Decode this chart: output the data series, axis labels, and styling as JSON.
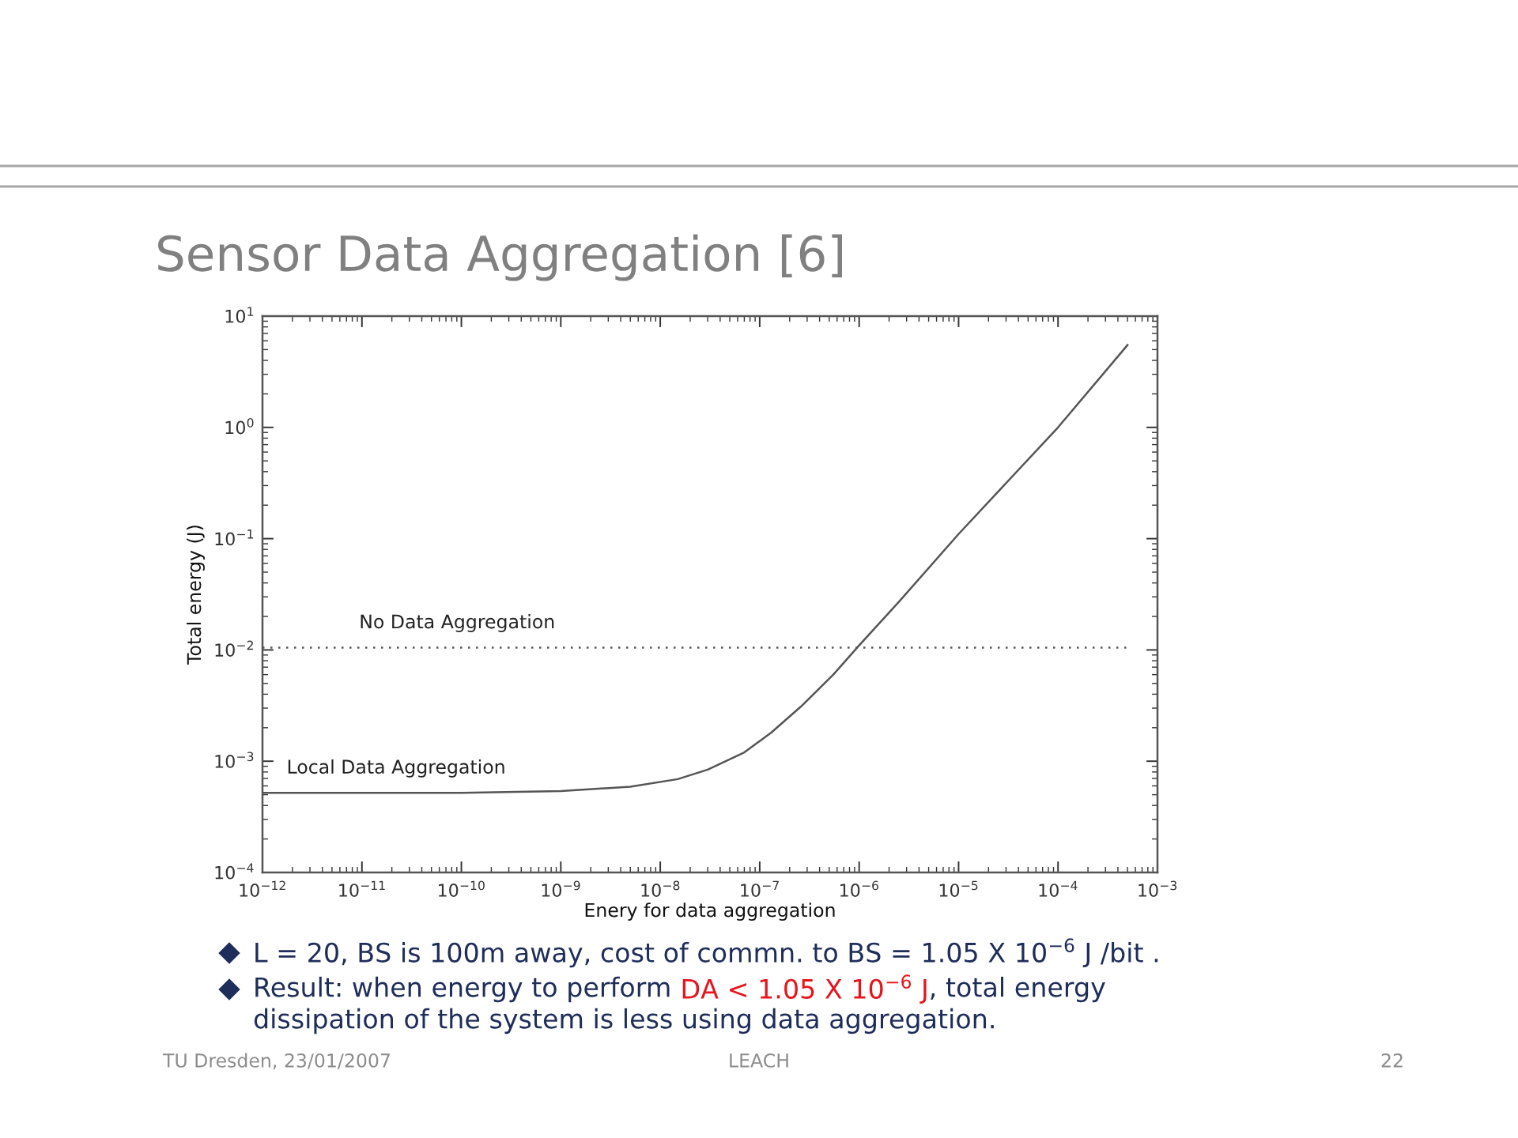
{
  "chart_data": {
    "type": "line",
    "title": "Sensor Data Aggregation [6]",
    "xlabel": "Enery for data aggregation",
    "ylabel": "Total energy (J)",
    "log": "xy",
    "xlim": [
      1e-12,
      0.001
    ],
    "ylim": [
      0.0001,
      10
    ],
    "xticks": [
      {
        "value": 1e-12,
        "label": "10$^{−12}$"
      },
      {
        "value": 1e-11,
        "label": "10$^{−11}$"
      },
      {
        "value": 1e-10,
        "label": "10$^{−10}$"
      },
      {
        "value": 1e-09,
        "label": "10$^{−9}$"
      },
      {
        "value": 1e-08,
        "label": "10$^{−8}$"
      },
      {
        "value": 1e-07,
        "label": "10$^{−7}$"
      },
      {
        "value": 1e-06,
        "label": "10$^{−6}$"
      },
      {
        "value": 1e-05,
        "label": "10$^{−5}$"
      },
      {
        "value": 0.0001,
        "label": "10$^{−4}$"
      },
      {
        "value": 0.001,
        "label": "10$^{−3}$"
      }
    ],
    "yticks": [
      {
        "value": 0.0001,
        "label": "10$^{−4}$"
      },
      {
        "value": 0.001,
        "label": "10$^{−3}$"
      },
      {
        "value": 0.01,
        "label": "10$^{−2}$"
      },
      {
        "value": 0.1,
        "label": "10$^{−1}$"
      },
      {
        "value": 1,
        "label": "10$^{0}$"
      },
      {
        "value": 10,
        "label": "10$^{1}$"
      }
    ],
    "series": [
      {
        "name": "Local Data Aggregation",
        "color": "#555555",
        "line_style": "solid",
        "x": [
          1e-12,
          1e-11,
          1e-10,
          1e-09,
          5e-09,
          1.5e-08,
          3e-08,
          7e-08,
          1.3e-07,
          2.6e-07,
          5.5e-07,
          1e-06,
          2.6e-06,
          1e-05,
          0.0001,
          0.0005
        ],
        "values": [
          0.00052,
          0.00052,
          0.00052,
          0.00054,
          0.00059,
          0.00069,
          0.00084,
          0.0012,
          0.0018,
          0.0031,
          0.006,
          0.011,
          0.028,
          0.11,
          1.0,
          5.5
        ]
      },
      {
        "name": "No Data Aggregation",
        "color": "#555555",
        "line_style": "dotted",
        "x": [
          1e-12,
          0.0005
        ],
        "values": [
          0.0105,
          0.0105
        ]
      }
    ],
    "annotations": [
      "L = 20, BS is 100m away, cost of commn. to BS = 1.05 X 10$^{−6}$ J /bit .",
      "Result: when energy to perform",
      "DA < 1.05 X 10$^{−6}$ J",
      ", total energy",
      "dissipation of the system is less using data aggregation.",
      "TU Dresden, 23/01/2007",
      "LEACH",
      "22"
    ]
  }
}
